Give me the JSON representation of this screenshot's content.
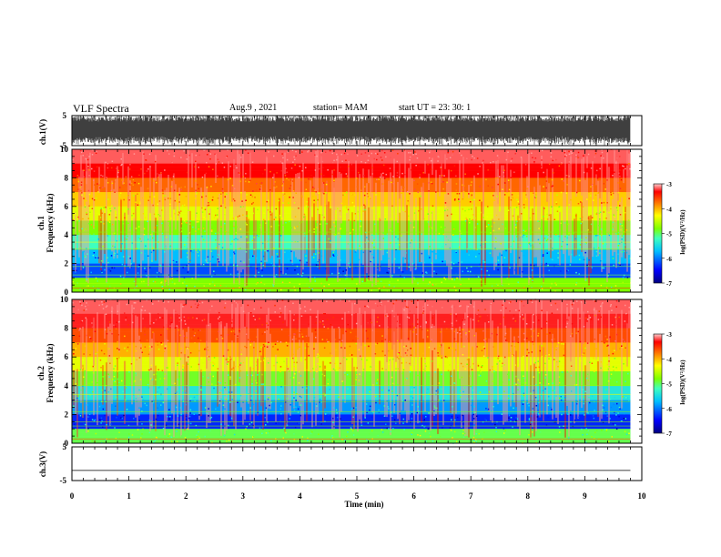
{
  "header": {
    "title": "VLF Spectra",
    "date": "Aug.9 , 2021",
    "station": "station= MAM",
    "start": "start UT = 23: 30: 1"
  },
  "colors": {
    "colormap": [
      "#00007f",
      "#0000ff",
      "#00bfff",
      "#3fffbf",
      "#7fff00",
      "#ffff00",
      "#ff7f00",
      "#ff0000",
      "#ff9999"
    ],
    "trace": "#000000",
    "background": "#ffffff"
  },
  "chart_data": [
    {
      "type": "line",
      "panel": "ch1-waveform",
      "ylabel": "ch.1(V)",
      "yticks": [
        "5",
        "-5"
      ],
      "ylim": [
        -5,
        5
      ],
      "xlim": [
        0,
        10
      ],
      "data_end_min": 9.8,
      "description_series": [
        {
          "values_range": [
            -5,
            5
          ]
        }
      ]
    },
    {
      "type": "heatmap",
      "panel": "ch1-spectrogram",
      "ylabel": "ch.1",
      "ylabel2": "Frequency (kHz)",
      "yticks": [
        "0",
        "2",
        "4",
        "6",
        "8",
        "10"
      ],
      "ylim": [
        0,
        10
      ],
      "xlim": [
        0,
        10
      ],
      "data_end_min": 9.8,
      "colorbar": {
        "label": "log(PSD)(V²/Hz)",
        "ticks": [
          "-3",
          "-4",
          "-5",
          "-6",
          "-7"
        ],
        "range": [
          -7,
          -3
        ]
      },
      "psd_profile": [
        {
          "freq_khz": 0.5,
          "log_psd": -5.0
        },
        {
          "freq_khz": 1.5,
          "log_psd": -6.3
        },
        {
          "freq_khz": 2.5,
          "log_psd": -6.0
        },
        {
          "freq_khz": 3.5,
          "log_psd": -5.5
        },
        {
          "freq_khz": 4.5,
          "log_psd": -5.0
        },
        {
          "freq_khz": 5.5,
          "log_psd": -4.6
        },
        {
          "freq_khz": 6.5,
          "log_psd": -4.3
        },
        {
          "freq_khz": 7.5,
          "log_psd": -3.9
        },
        {
          "freq_khz": 8.5,
          "log_psd": -3.5
        },
        {
          "freq_khz": 9.5,
          "log_psd": -3.2
        }
      ]
    },
    {
      "type": "heatmap",
      "panel": "ch2-spectrogram",
      "ylabel": "ch.2",
      "ylabel2": "Frequency (kHz)",
      "yticks": [
        "0",
        "2",
        "4",
        "6",
        "8",
        "10"
      ],
      "ylim": [
        0,
        10
      ],
      "xlim": [
        0,
        10
      ],
      "data_end_min": 9.8,
      "colorbar": {
        "label": "log(PSD)(V²/Hz)",
        "ticks": [
          "-3",
          "-4",
          "-5",
          "-6",
          "-7"
        ],
        "range": [
          -7,
          -3
        ]
      },
      "psd_profile": [
        {
          "freq_khz": 0.5,
          "log_psd": -5.2
        },
        {
          "freq_khz": 1.5,
          "log_psd": -6.4
        },
        {
          "freq_khz": 2.5,
          "log_psd": -6.1
        },
        {
          "freq_khz": 3.5,
          "log_psd": -5.7
        },
        {
          "freq_khz": 4.5,
          "log_psd": -5.1
        },
        {
          "freq_khz": 5.5,
          "log_psd": -4.6
        },
        {
          "freq_khz": 6.5,
          "log_psd": -4.2
        },
        {
          "freq_khz": 7.5,
          "log_psd": -3.8
        },
        {
          "freq_khz": 8.5,
          "log_psd": -3.4
        },
        {
          "freq_khz": 9.5,
          "log_psd": -3.2
        }
      ]
    },
    {
      "type": "line",
      "panel": "ch3-waveform",
      "ylabel": "ch.3(V)",
      "yticks": [
        "5",
        "-5"
      ],
      "ylim": [
        -5,
        5
      ],
      "xlim": [
        0,
        10
      ],
      "data_end_min": 9.8,
      "series": [
        {
          "x": [
            0,
            9.8
          ],
          "y": [
            -2,
            -2
          ]
        }
      ]
    }
  ],
  "xaxis": {
    "label": "Time (min)",
    "ticks": [
      "0",
      "1",
      "2",
      "3",
      "4",
      "5",
      "6",
      "7",
      "8",
      "9",
      "10"
    ]
  }
}
